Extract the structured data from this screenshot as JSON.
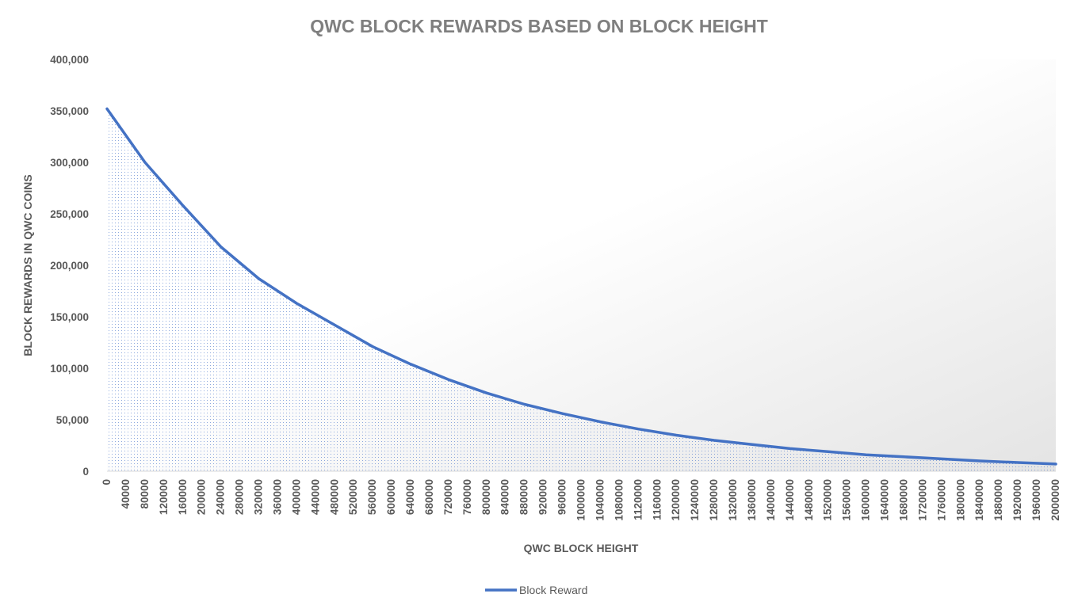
{
  "chart_data": {
    "type": "area",
    "title": "QWC BLOCK REWARDS BASED ON BLOCK HEIGHT",
    "xlabel": "QWC BLOCK HEIGHT",
    "ylabel": "BLOCK REWARDS IN QWC COINS",
    "xlim": [
      0,
      2000000
    ],
    "ylim": [
      0,
      400000
    ],
    "y_ticks": [
      0,
      50000,
      100000,
      150000,
      200000,
      250000,
      300000,
      350000,
      400000
    ],
    "y_tick_labels": [
      "0",
      "50,000",
      "100,000",
      "150,000",
      "200,000",
      "250,000",
      "300,000",
      "350,000",
      "400,000"
    ],
    "x_tick_labels": [
      "0",
      "40000",
      "80000",
      "120000",
      "160000",
      "200000",
      "240000",
      "280000",
      "320000",
      "360000",
      "400000",
      "440000",
      "480000",
      "520000",
      "560000",
      "600000",
      "640000",
      "680000",
      "720000",
      "760000",
      "800000",
      "840000",
      "880000",
      "920000",
      "960000",
      "1000000",
      "1040000",
      "1080000",
      "1120000",
      "1160000",
      "1200000",
      "1240000",
      "1280000",
      "1320000",
      "1360000",
      "1400000",
      "1440000",
      "1480000",
      "1520000",
      "1560000",
      "1600000",
      "1640000",
      "1680000",
      "1720000",
      "1760000",
      "1800000",
      "1840000",
      "1880000",
      "1920000",
      "1960000",
      "2000000"
    ],
    "grid": false,
    "legend_position": "bottom",
    "series": [
      {
        "name": "Block Reward",
        "color": "#4472c4",
        "x": [
          0,
          80000,
          160000,
          240000,
          320000,
          400000,
          480000,
          560000,
          640000,
          720000,
          800000,
          880000,
          960000,
          1040000,
          1120000,
          1200000,
          1280000,
          1360000,
          1440000,
          1520000,
          1600000,
          1680000,
          1760000,
          1840000,
          1920000,
          2000000
        ],
        "values": [
          352000,
          300000,
          258000,
          218000,
          187000,
          163000,
          142000,
          121000,
          104000,
          89000,
          76000,
          65000,
          56000,
          48000,
          41000,
          35000,
          30000,
          26000,
          22000,
          19000,
          16000,
          14000,
          12000,
          10000,
          8500,
          7000
        ]
      }
    ]
  }
}
